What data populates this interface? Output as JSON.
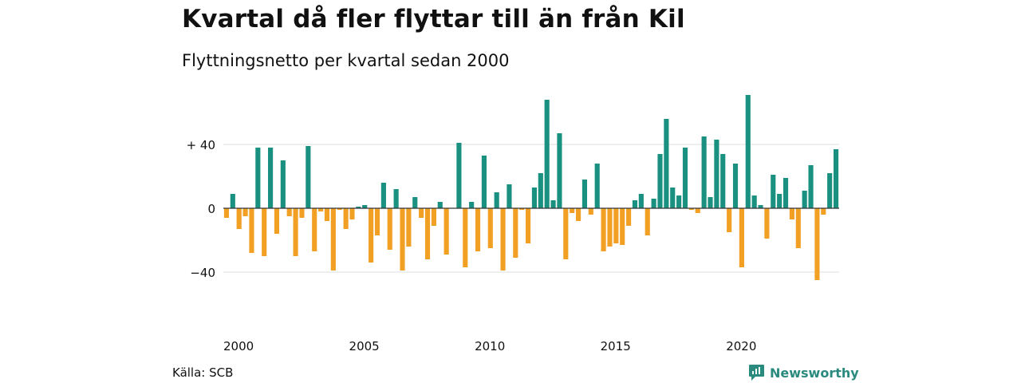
{
  "title": "Kvartal då fler flyttar till än från Kil",
  "subtitle": "Flyttningsnetto per kvartal sedan 2000",
  "source": "Källa: SCB",
  "brand": "Newsworthy",
  "colors": {
    "positive": "#1a9080",
    "negative": "#f2a024",
    "grid": "#dddddd",
    "axis": "#333333",
    "brand": "#2a8a7d"
  },
  "chart_data": {
    "type": "bar",
    "title": "Kvartal då fler flyttar till än från Kil",
    "subtitle": "Flyttningsnetto per kvartal sedan 2000",
    "xlabel": "",
    "ylabel": "",
    "ylim": [
      -60,
      70
    ],
    "y_ticks": [
      {
        "value": 40,
        "label": "+ 40"
      },
      {
        "value": 0,
        "label": "0"
      },
      {
        "value": -40,
        "label": "−40"
      }
    ],
    "x_ticks": [
      {
        "value": 2000,
        "label": "2000"
      },
      {
        "value": 2005,
        "label": "2005"
      },
      {
        "value": 2010,
        "label": "2010"
      },
      {
        "value": 2015,
        "label": "2015"
      },
      {
        "value": 2020,
        "label": "2020"
      }
    ],
    "grid": true,
    "start": "2000 Q1",
    "values": [
      -6,
      9,
      -13,
      -5,
      -28,
      38,
      -30,
      38,
      -16,
      30,
      -5,
      -30,
      -6,
      39,
      -27,
      -2,
      -8,
      -39,
      -1,
      -13,
      -7,
      1,
      2,
      -34,
      -17,
      16,
      -26,
      12,
      -39,
      -24,
      7,
      -6,
      -32,
      -11,
      4,
      -29,
      0,
      41,
      -37,
      4,
      -27,
      33,
      -25,
      10,
      -39,
      15,
      -31,
      -1,
      -22,
      13,
      22,
      68,
      5,
      47,
      -32,
      -3,
      -8,
      18,
      -4,
      28,
      -27,
      -24,
      -22,
      -23,
      -11,
      5,
      9,
      -17,
      6,
      34,
      56,
      13,
      8,
      38,
      -1,
      -3,
      45,
      7,
      43,
      34,
      -15,
      28,
      -37,
      71,
      8,
      2,
      -19,
      21,
      9,
      19,
      -7,
      -25,
      11,
      27,
      -45,
      -4,
      22,
      37
    ]
  }
}
